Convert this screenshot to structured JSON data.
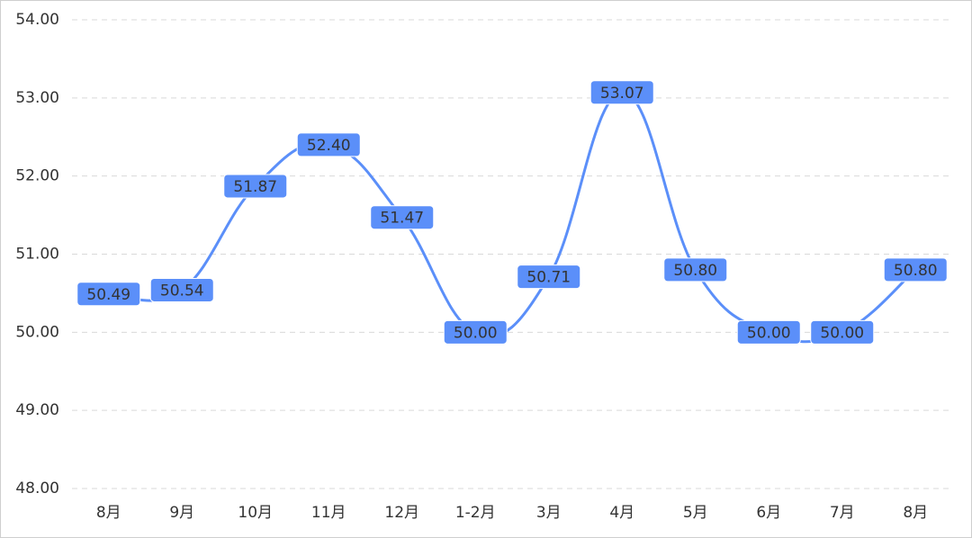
{
  "chart_data": {
    "type": "line",
    "categories": [
      "8月",
      "9月",
      "10月",
      "11月",
      "12月",
      "1-2月",
      "3月",
      "4月",
      "5月",
      "6月",
      "7月",
      "8月"
    ],
    "series": [
      {
        "color": "#5b8ff9",
        "values": [
          50.49,
          50.54,
          51.87,
          52.4,
          51.47,
          50,
          50.71,
          53.07,
          50.8,
          50,
          50,
          50.8
        ],
        "value_labels": [
          "50.49",
          "50.54",
          "51.87",
          "52.40",
          "51.47",
          "50.00",
          "50.71",
          "53.07",
          "50.80",
          "50.00",
          "50.00",
          "50.80"
        ]
      }
    ],
    "ylim": [
      48,
      54
    ],
    "yticks": [
      {
        "value": 48,
        "label": "48.00"
      },
      {
        "value": 49,
        "label": "49.00"
      },
      {
        "value": 50,
        "label": "50.00"
      },
      {
        "value": 51,
        "label": "51.00"
      },
      {
        "value": 52,
        "label": "52.00"
      },
      {
        "value": 53,
        "label": "53.00"
      },
      {
        "value": 54,
        "label": "54.00"
      }
    ],
    "grid": true,
    "smooth": true
  }
}
